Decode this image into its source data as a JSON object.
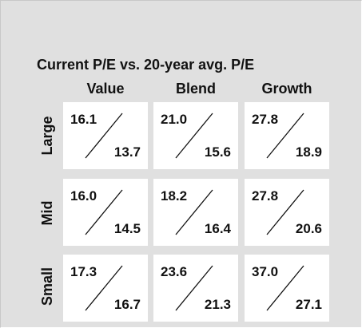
{
  "chart_data": {
    "type": "table",
    "title": "Current P/E vs. 20-year avg. P/E",
    "columns": [
      "Value",
      "Blend",
      "Growth"
    ],
    "rows": [
      {
        "label": "Large",
        "cells": [
          {
            "current": "16.1",
            "average": "13.7"
          },
          {
            "current": "21.0",
            "average": "15.6"
          },
          {
            "current": "27.8",
            "average": "18.9"
          }
        ]
      },
      {
        "label": "Mid",
        "cells": [
          {
            "current": "16.0",
            "average": "14.5"
          },
          {
            "current": "18.2",
            "average": "16.4"
          },
          {
            "current": "27.8",
            "average": "20.6"
          }
        ]
      },
      {
        "label": "Small",
        "cells": [
          {
            "current": "17.3",
            "average": "16.7"
          },
          {
            "current": "23.6",
            "average": "21.3"
          },
          {
            "current": "37.0",
            "average": "27.1"
          }
        ]
      }
    ],
    "colors": {
      "background": "#e0e0e0",
      "cell": "#ffffff",
      "text": "#111111"
    }
  }
}
